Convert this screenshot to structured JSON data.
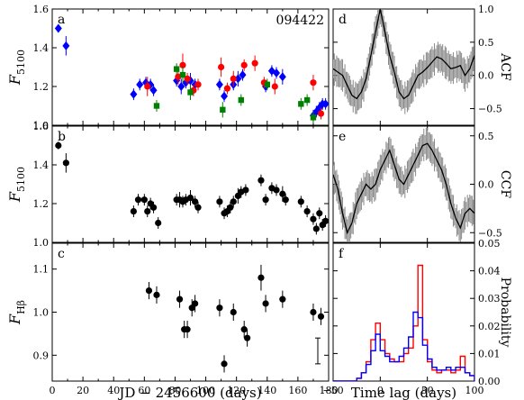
{
  "figure": {
    "object_id": "094422",
    "xlabel_left": "JD  −  2456600 (days)",
    "xlabel_right": "Time lag (days)"
  },
  "chart_data": [
    {
      "panel": "a",
      "type": "scatter",
      "ylabel": "F5100",
      "xlim": [
        0,
        180
      ],
      "ylim": [
        1.0,
        1.6
      ],
      "yticks": [
        "1.0",
        "1.2",
        "1.4",
        "1.6"
      ],
      "xticks": [
        "0",
        "20",
        "40",
        "60",
        "80",
        "100",
        "120",
        "140",
        "160",
        "180"
      ],
      "show_xticklabels": false,
      "series": [
        {
          "marker": "diamond",
          "color": "#0000ff",
          "points": [
            [
              4,
              1.5,
              0.02
            ],
            [
              9,
              1.41,
              0.05
            ],
            [
              53,
              1.16,
              0.03
            ],
            [
              57,
              1.21,
              0.03
            ],
            [
              61,
              1.22,
              0.03
            ],
            [
              64,
              1.21,
              0.03
            ],
            [
              66,
              1.18,
              0.03
            ],
            [
              81,
              1.23,
              0.03
            ],
            [
              84,
              1.2,
              0.04
            ],
            [
              87,
              1.22,
              0.03
            ],
            [
              90,
              1.23,
              0.04
            ],
            [
              93,
              1.21,
              0.03
            ],
            [
              109,
              1.21,
              0.03
            ],
            [
              112,
              1.15,
              0.03
            ],
            [
              118,
              1.21,
              0.03
            ],
            [
              121,
              1.24,
              0.04
            ],
            [
              124,
              1.26,
              0.03
            ],
            [
              139,
              1.2,
              0.03
            ],
            [
              143,
              1.28,
              0.03
            ],
            [
              146,
              1.27,
              0.03
            ],
            [
              150,
              1.25,
              0.04
            ],
            [
              170,
              1.05,
              0.03
            ],
            [
              172,
              1.07,
              0.03
            ],
            [
              174,
              1.09,
              0.03
            ],
            [
              176,
              1.11,
              0.03
            ],
            [
              178,
              1.11,
              0.03
            ]
          ]
        },
        {
          "marker": "circle",
          "color": "#ff0000",
          "points": [
            [
              62,
              1.2,
              0.05
            ],
            [
              82,
              1.25,
              0.04
            ],
            [
              85,
              1.31,
              0.06
            ],
            [
              88,
              1.24,
              0.03
            ],
            [
              92,
              1.18,
              0.03
            ],
            [
              95,
              1.21,
              0.03
            ],
            [
              110,
              1.3,
              0.05
            ],
            [
              114,
              1.19,
              0.03
            ],
            [
              118,
              1.24,
              0.04
            ],
            [
              125,
              1.31,
              0.03
            ],
            [
              132,
              1.32,
              0.04
            ],
            [
              138,
              1.22,
              0.03
            ],
            [
              145,
              1.2,
              0.04
            ],
            [
              170,
              1.22,
              0.04
            ],
            [
              175,
              1.06,
              0.03
            ]
          ]
        },
        {
          "marker": "square",
          "color": "#008000",
          "points": [
            [
              68,
              1.1,
              0.03
            ],
            [
              81,
              1.29,
              0.03
            ],
            [
              85,
              1.26,
              0.04
            ],
            [
              90,
              1.17,
              0.04
            ],
            [
              111,
              1.08,
              0.04
            ],
            [
              123,
              1.13,
              0.03
            ],
            [
              140,
              1.21,
              0.03
            ],
            [
              162,
              1.11,
              0.03
            ],
            [
              166,
              1.13,
              0.03
            ],
            [
              170,
              1.04,
              0.03
            ]
          ]
        }
      ]
    },
    {
      "panel": "b",
      "type": "scatter",
      "ylabel": "F5100",
      "xlim": [
        0,
        180
      ],
      "ylim": [
        1.0,
        1.6
      ],
      "yticks": [
        "1.0",
        "1.2",
        "1.4",
        "1.6"
      ],
      "xticks": [
        "0",
        "20",
        "40",
        "60",
        "80",
        "100",
        "120",
        "140",
        "160",
        "180"
      ],
      "show_xticklabels": false,
      "series": [
        {
          "marker": "circle",
          "color": "#000000",
          "points": [
            [
              4,
              1.5,
              0.02
            ],
            [
              9,
              1.41,
              0.05
            ],
            [
              53,
              1.16,
              0.03
            ],
            [
              56,
              1.22,
              0.03
            ],
            [
              60,
              1.22,
              0.03
            ],
            [
              62,
              1.16,
              0.03
            ],
            [
              64,
              1.2,
              0.03
            ],
            [
              66,
              1.18,
              0.03
            ],
            [
              69,
              1.1,
              0.03
            ],
            [
              81,
              1.22,
              0.03
            ],
            [
              83,
              1.22,
              0.04
            ],
            [
              85,
              1.21,
              0.03
            ],
            [
              87,
              1.22,
              0.03
            ],
            [
              90,
              1.23,
              0.04
            ],
            [
              93,
              1.21,
              0.03
            ],
            [
              95,
              1.18,
              0.03
            ],
            [
              109,
              1.21,
              0.03
            ],
            [
              112,
              1.15,
              0.03
            ],
            [
              114,
              1.16,
              0.03
            ],
            [
              116,
              1.18,
              0.03
            ],
            [
              118,
              1.21,
              0.03
            ],
            [
              121,
              1.24,
              0.04
            ],
            [
              123,
              1.26,
              0.03
            ],
            [
              126,
              1.27,
              0.03
            ],
            [
              136,
              1.32,
              0.03
            ],
            [
              139,
              1.22,
              0.03
            ],
            [
              143,
              1.28,
              0.03
            ],
            [
              146,
              1.27,
              0.03
            ],
            [
              150,
              1.25,
              0.04
            ],
            [
              152,
              1.22,
              0.03
            ],
            [
              162,
              1.21,
              0.03
            ],
            [
              166,
              1.16,
              0.03
            ],
            [
              170,
              1.12,
              0.03
            ],
            [
              172,
              1.07,
              0.03
            ],
            [
              174,
              1.15,
              0.03
            ],
            [
              176,
              1.09,
              0.03
            ],
            [
              178,
              1.11,
              0.03
            ]
          ]
        }
      ]
    },
    {
      "panel": "c",
      "type": "scatter",
      "ylabel": "FHβ",
      "xlim": [
        0,
        180
      ],
      "ylim": [
        0.84,
        1.16
      ],
      "yticks": [
        "0.9",
        "1.0",
        "1.1"
      ],
      "xticks": [
        "0",
        "20",
        "40",
        "60",
        "80",
        "100",
        "120",
        "140",
        "160",
        "180"
      ],
      "show_xticklabels": true,
      "typical_error": 0.03,
      "series": [
        {
          "marker": "circle",
          "color": "#000000",
          "points": [
            [
              63,
              1.05,
              0.02
            ],
            [
              68,
              1.04,
              0.02
            ],
            [
              83,
              1.03,
              0.02
            ],
            [
              86,
              0.96,
              0.02
            ],
            [
              88,
              0.96,
              0.02
            ],
            [
              91,
              1.01,
              0.02
            ],
            [
              93,
              1.02,
              0.02
            ],
            [
              109,
              1.01,
              0.02
            ],
            [
              112,
              0.88,
              0.02
            ],
            [
              118,
              1.0,
              0.02
            ],
            [
              125,
              0.96,
              0.02
            ],
            [
              127,
              0.94,
              0.02
            ],
            [
              136,
              1.08,
              0.03
            ],
            [
              139,
              1.02,
              0.02
            ],
            [
              150,
              1.03,
              0.02
            ],
            [
              170,
              1.0,
              0.02
            ],
            [
              175,
              0.99,
              0.02
            ]
          ]
        }
      ]
    },
    {
      "panel": "d",
      "type": "line",
      "ylabel": "ACF",
      "xlim": [
        -50,
        100
      ],
      "ylim": [
        -0.75,
        1.0
      ],
      "yticks": [
        "1.0",
        "0.5",
        "0.0",
        "−0.5"
      ],
      "ytick_values": [
        1.0,
        0.5,
        0.0,
        -0.5
      ],
      "show_xticklabels": false,
      "x": [
        -50,
        -45,
        -40,
        -35,
        -30,
        -25,
        -20,
        -15,
        -10,
        -5,
        0,
        5,
        10,
        15,
        20,
        25,
        30,
        35,
        40,
        45,
        50,
        55,
        60,
        65,
        70,
        75,
        80,
        85,
        90,
        95,
        100
      ],
      "y": [
        0.1,
        0.05,
        0.0,
        -0.15,
        -0.3,
        -0.35,
        -0.25,
        -0.05,
        0.3,
        0.65,
        1.0,
        0.65,
        0.3,
        0.05,
        -0.25,
        -0.35,
        -0.3,
        -0.15,
        0.0,
        0.05,
        0.12,
        0.2,
        0.28,
        0.25,
        0.18,
        0.1,
        0.12,
        0.15,
        0.0,
        0.1,
        0.3
      ]
    },
    {
      "panel": "e",
      "type": "line",
      "ylabel": "CCF",
      "xlim": [
        -50,
        100
      ],
      "ylim": [
        -0.6,
        0.6
      ],
      "yticks": [
        "0.5",
        "0.0",
        "−0.5"
      ],
      "ytick_values": [
        0.5,
        0.0,
        -0.5
      ],
      "show_xticklabels": false,
      "x": [
        -50,
        -45,
        -40,
        -35,
        -30,
        -25,
        -20,
        -15,
        -10,
        -5,
        0,
        5,
        10,
        15,
        20,
        25,
        30,
        35,
        40,
        45,
        50,
        55,
        60,
        65,
        70,
        75,
        80,
        85,
        90,
        95,
        100
      ],
      "y": [
        0.1,
        -0.05,
        -0.3,
        -0.5,
        -0.4,
        -0.2,
        -0.1,
        0.0,
        -0.05,
        0.0,
        0.15,
        0.25,
        0.35,
        0.2,
        0.05,
        0.0,
        0.1,
        0.2,
        0.3,
        0.4,
        0.42,
        0.35,
        0.25,
        0.15,
        0.0,
        -0.2,
        -0.35,
        -0.45,
        -0.3,
        -0.25,
        -0.3
      ]
    },
    {
      "panel": "f",
      "type": "histogram",
      "ylabel": "Probability",
      "xlim": [
        -50,
        100
      ],
      "ylim": [
        0,
        0.05
      ],
      "yticks": [
        "0.00",
        "0.01",
        "0.02",
        "0.03",
        "0.04",
        "0.05"
      ],
      "ytick_values": [
        0.0,
        0.01,
        0.02,
        0.03,
        0.04,
        0.05
      ],
      "xticks": [
        "−50",
        "0",
        "50",
        "100"
      ],
      "xtick_values": [
        -50,
        0,
        50,
        100
      ],
      "show_xticklabels": true,
      "bin_width": 5,
      "bin_start": -50,
      "series": [
        {
          "color": "#ff0000",
          "values": [
            0,
            0,
            0,
            0,
            0,
            0.001,
            0.003,
            0.007,
            0.015,
            0.021,
            0.015,
            0.01,
            0.008,
            0.007,
            0.007,
            0.01,
            0.012,
            0.02,
            0.042,
            0.015,
            0.007,
            0.004,
            0.003,
            0.004,
            0.004,
            0.003,
            0.004,
            0.009,
            0.003,
            0.002
          ]
        },
        {
          "color": "#0000ff",
          "values": [
            0,
            0,
            0,
            0,
            0,
            0.001,
            0.003,
            0.006,
            0.011,
            0.017,
            0.011,
            0.009,
            0.007,
            0.007,
            0.009,
            0.012,
            0.016,
            0.025,
            0.023,
            0.013,
            0.008,
            0.005,
            0.004,
            0.004,
            0.005,
            0.004,
            0.005,
            0.005,
            0.003,
            0.002
          ]
        }
      ]
    }
  ]
}
